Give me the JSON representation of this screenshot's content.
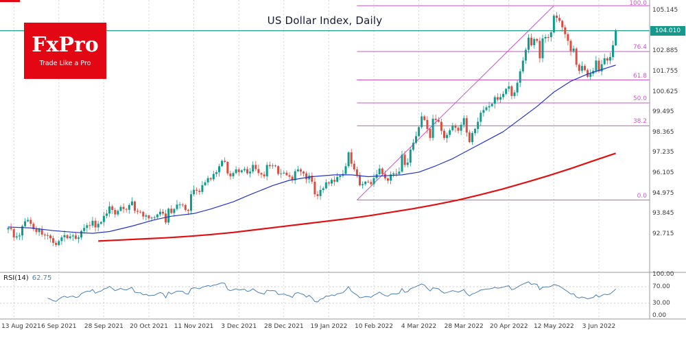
{
  "logo": {
    "text": "FxPro",
    "tagline": "Trade Like a Pro"
  },
  "colors": {
    "up": "#0E9C8D",
    "down": "#DE4C3F",
    "ma_fast": "#2233CC",
    "ma_slow": "#E01010",
    "fib": "#CC55CC",
    "price_line": "#16998A",
    "rsi_line": "#4A7FB5",
    "grid": "#D4D4D4",
    "logo_bg": "#E30613"
  },
  "chart_data": {
    "type": "candlestick",
    "title": "US Dollar Index, Daily",
    "timeframe": "Daily",
    "current_price": "104.010",
    "price_axis_labels": [
      "105.145",
      "104.010",
      "102.885",
      "101.755",
      "100.625",
      "99.495",
      "98.365",
      "97.235",
      "96.105",
      "94.975",
      "93.845",
      "92.715"
    ],
    "ylim": [
      90.6,
      105.7
    ],
    "x_ticks": [
      {
        "bar": 2,
        "label": "13 Aug 2021"
      },
      {
        "bar": 18,
        "label": "6 Sep 2021"
      },
      {
        "bar": 34,
        "label": "28 Sep 2021"
      },
      {
        "bar": 50,
        "label": "20 Oct 2021"
      },
      {
        "bar": 66,
        "label": "11 Nov 2021"
      },
      {
        "bar": 82,
        "label": "3 Dec 2021"
      },
      {
        "bar": 98,
        "label": "28 Dec 2021"
      },
      {
        "bar": 114,
        "label": "19 Jan 2022"
      },
      {
        "bar": 130,
        "label": "10 Feb 2022"
      },
      {
        "bar": 146,
        "label": "4 Mar 2022"
      },
      {
        "bar": 162,
        "label": "28 Mar 2022"
      },
      {
        "bar": 178,
        "label": "20 Apr 2022"
      },
      {
        "bar": 194,
        "label": "12 May 2022"
      },
      {
        "bar": 210,
        "label": "3 Jun 2022"
      }
    ],
    "closes": [
      93.05,
      92.98,
      92.52,
      92.58,
      92.63,
      93.15,
      93.42,
      93.5,
      93.28,
      92.98,
      92.82,
      92.98,
      92.68,
      92.65,
      92.63,
      92.48,
      92.22,
      92.1,
      92.32,
      92.53,
      92.65,
      92.48,
      92.58,
      92.63,
      92.45,
      92.52,
      92.88,
      93.05,
      93.2,
      93.18,
      93.45,
      93.08,
      93.28,
      93.38,
      93.72,
      93.85,
      94.25,
      94.05,
      93.8,
      94.0,
      94.22,
      94.1,
      94.06,
      94.32,
      94.52,
      94.0,
      93.95,
      93.94,
      93.68,
      93.75,
      93.58,
      93.62,
      93.64,
      93.8,
      93.95,
      93.85,
      93.35,
      94.12,
      93.88,
      94.1,
      94.35,
      94.35,
      94.32,
      94.05,
      94.0,
      94.92,
      95.17,
      95.12,
      95.05,
      95.42,
      95.58,
      95.82,
      95.75,
      96.05,
      96.15,
      96.48,
      96.78,
      96.72,
      96.08,
      95.92,
      96.1,
      96.3,
      96.15,
      96.25,
      96.32,
      96.08,
      96.18,
      96.55,
      96.32,
      96.1,
      96.02,
      95.92,
      96.55,
      96.48,
      96.52,
      96.48,
      96.05,
      96.08,
      96.12,
      95.98,
      95.9,
      95.7,
      96.2,
      96.3,
      96.18,
      96.08,
      95.75,
      95.95,
      95.62,
      94.92,
      94.82,
      95.16,
      95.25,
      95.58,
      95.52,
      95.72,
      95.62,
      95.88,
      95.95,
      96.05,
      96.48,
      97.25,
      96.62,
      96.3,
      95.98,
      95.42,
      95.48,
      95.62,
      95.6,
      95.48,
      95.82,
      96.03,
      96.35,
      96.05,
      95.8,
      95.68,
      96.02,
      96.08,
      96.05,
      96.18,
      97.12,
      96.55,
      96.68,
      97.4,
      97.78,
      98.15,
      98.65,
      99.25,
      99.05,
      98.55,
      98.05,
      99.12,
      99.05,
      98.95,
      98.45,
      98.05,
      98.22,
      98.48,
      98.75,
      98.62,
      98.45,
      98.78,
      99.15,
      98.35,
      97.82,
      98.32,
      98.55,
      98.95,
      99.45,
      99.6,
      99.75,
      99.82,
      99.95,
      100.32,
      100.18,
      100.32,
      100.5,
      100.78,
      100.92,
      100.38,
      100.58,
      101.12,
      101.75,
      102.35,
      102.95,
      103.62,
      103.2,
      103.55,
      103.45,
      102.48,
      103.58,
      103.66,
      103.65,
      103.92,
      104.85,
      104.72,
      104.56,
      104.2,
      103.82,
      103.45,
      102.88,
      103.02,
      102.12,
      101.78,
      102.05,
      101.82,
      101.45,
      101.62,
      101.78,
      102.35,
      101.75,
      102.15,
      102.48,
      102.35,
      102.55,
      103.2,
      104.01
    ],
    "ma_blue_points": [
      [
        0,
        93.1
      ],
      [
        8,
        93.05
      ],
      [
        16,
        92.9
      ],
      [
        24,
        92.8
      ],
      [
        30,
        92.75
      ],
      [
        36,
        92.85
      ],
      [
        44,
        93.15
      ],
      [
        52,
        93.5
      ],
      [
        58,
        93.7
      ],
      [
        66,
        93.85
      ],
      [
        72,
        94.1
      ],
      [
        80,
        94.5
      ],
      [
        86,
        94.9
      ],
      [
        94,
        95.4
      ],
      [
        100,
        95.7
      ],
      [
        108,
        95.9
      ],
      [
        116,
        96.0
      ],
      [
        122,
        96.0
      ],
      [
        128,
        95.9
      ],
      [
        134,
        95.95
      ],
      [
        140,
        96.0
      ],
      [
        146,
        96.15
      ],
      [
        152,
        96.5
      ],
      [
        158,
        96.9
      ],
      [
        164,
        97.4
      ],
      [
        170,
        97.9
      ],
      [
        176,
        98.4
      ],
      [
        182,
        99.1
      ],
      [
        188,
        99.8
      ],
      [
        194,
        100.6
      ],
      [
        200,
        101.2
      ],
      [
        206,
        101.6
      ],
      [
        212,
        101.9
      ],
      [
        216,
        102.1
      ]
    ],
    "ma_red_points": [
      [
        32,
        92.32
      ],
      [
        40,
        92.38
      ],
      [
        48,
        92.44
      ],
      [
        56,
        92.5
      ],
      [
        64,
        92.58
      ],
      [
        72,
        92.68
      ],
      [
        80,
        92.8
      ],
      [
        88,
        92.95
      ],
      [
        96,
        93.1
      ],
      [
        104,
        93.25
      ],
      [
        112,
        93.4
      ],
      [
        120,
        93.55
      ],
      [
        128,
        93.72
      ],
      [
        136,
        93.92
      ],
      [
        144,
        94.12
      ],
      [
        152,
        94.35
      ],
      [
        160,
        94.6
      ],
      [
        168,
        94.9
      ],
      [
        176,
        95.22
      ],
      [
        184,
        95.58
      ],
      [
        192,
        95.95
      ],
      [
        200,
        96.35
      ],
      [
        208,
        96.78
      ],
      [
        216,
        97.2
      ]
    ],
    "fibonacci": {
      "levels": [
        "0.0",
        "38.2",
        "50.0",
        "61.8",
        "76.4",
        "100.0"
      ],
      "price_low": 94.6,
      "price_high": 105.4,
      "start_bar": 124,
      "end_bar": 194
    },
    "rsi": {
      "name": "RSI(14)",
      "value": "62.75",
      "period": 14,
      "levels": [
        "100.00",
        "70.00",
        "30.00",
        "0.00"
      ]
    }
  }
}
